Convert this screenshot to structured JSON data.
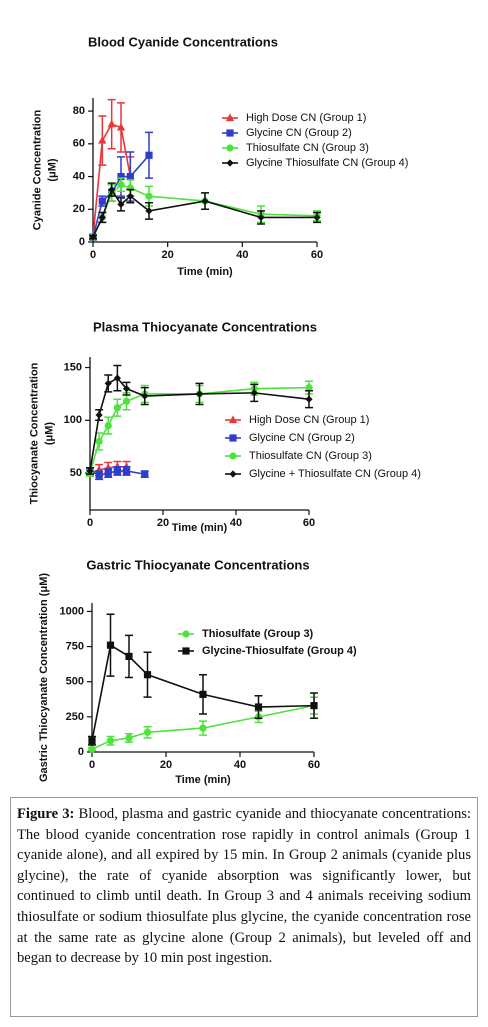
{
  "chart_data": [
    {
      "type": "line",
      "title": "Blood Cyanide Concentrations",
      "xlabel": "Time (min)",
      "ylabel": [
        "Cyanide Concentration",
        "(μM)"
      ],
      "xlim": [
        0,
        60
      ],
      "xticks": [
        0,
        20,
        40,
        60
      ],
      "ylim": [
        0,
        88
      ],
      "yticks": [
        0,
        20,
        40,
        60,
        80
      ],
      "grid": false,
      "series": [
        {
          "name": "High Dose CN (Group 1)",
          "color": "#e8373a",
          "marker": "triangle",
          "x": [
            0,
            2.5,
            5,
            7.5,
            10
          ],
          "values": [
            3,
            62,
            72,
            70,
            40
          ],
          "errors": [
            1,
            15,
            15,
            15,
            12
          ]
        },
        {
          "name": "Glycine CN (Group 2)",
          "color": "#2f3ec9",
          "marker": "square",
          "x": [
            0,
            2.5,
            5,
            7.5,
            10,
            15
          ],
          "values": [
            3,
            25,
            30,
            40,
            40,
            53
          ],
          "errors": [
            1,
            3,
            5,
            12,
            15,
            14
          ]
        },
        {
          "name": "Thiosulfate CN (Group 3)",
          "color": "#4de33c",
          "marker": "circle",
          "x": [
            0,
            2.5,
            5,
            7.5,
            10,
            15,
            30,
            45,
            60
          ],
          "values": [
            3,
            15,
            30,
            35,
            33,
            28,
            25,
            17,
            16
          ],
          "errors": [
            1,
            3,
            5,
            4,
            5,
            6,
            5,
            5,
            3
          ]
        },
        {
          "name": "Glycine Thiosulfate CN (Group 4)",
          "color": "#111111",
          "marker": "diamond",
          "x": [
            0,
            2.5,
            5,
            7.5,
            10,
            15,
            30,
            45,
            60
          ],
          "values": [
            3,
            15,
            32,
            23,
            28,
            19,
            25,
            15,
            15
          ],
          "errors": [
            1,
            3,
            4,
            4,
            4,
            5,
            5,
            4,
            3
          ]
        }
      ]
    },
    {
      "type": "line",
      "title": "Plasma Thiocyanate Concentrations",
      "xlabel": "Time (min)",
      "ylabel": [
        "Thiocyanate Concentration",
        "(μM)"
      ],
      "xlim": [
        0,
        60
      ],
      "xticks": [
        0,
        20,
        40,
        60
      ],
      "ylim": [
        15,
        160
      ],
      "yticks": [
        50,
        100,
        150
      ],
      "grid": false,
      "series": [
        {
          "name": "High Dose CN (Group 1)",
          "color": "#e8373a",
          "marker": "triangle",
          "x": [
            0,
            2.5,
            5,
            7.5,
            10
          ],
          "values": [
            50,
            53,
            55,
            56,
            56
          ],
          "errors": [
            3,
            5,
            5,
            5,
            5
          ]
        },
        {
          "name": "Glycine CN (Group 2)",
          "color": "#2f3ec9",
          "marker": "square",
          "x": [
            0,
            2.5,
            5,
            7.5,
            10,
            15
          ],
          "values": [
            52,
            48,
            50,
            52,
            52,
            49
          ],
          "errors": [
            3,
            4,
            4,
            4,
            4,
            3
          ]
        },
        {
          "name": "Thiosulfate CN (Group 3)",
          "color": "#4de33c",
          "marker": "circle",
          "x": [
            0,
            2.5,
            5,
            7.5,
            10,
            15,
            30,
            45,
            60
          ],
          "values": [
            50,
            80,
            95,
            112,
            118,
            125,
            125,
            130,
            131
          ],
          "errors": [
            3,
            8,
            8,
            8,
            8,
            8,
            8,
            6,
            6
          ]
        },
        {
          "name": "Glycine + Thiosulfate CN (Group 4)",
          "color": "#111111",
          "marker": "diamond",
          "x": [
            0,
            2.5,
            5,
            7.5,
            10,
            15,
            30,
            45,
            60
          ],
          "values": [
            52,
            105,
            135,
            140,
            130,
            123,
            125,
            126,
            120
          ],
          "errors": [
            3,
            5,
            8,
            12,
            6,
            8,
            10,
            8,
            8
          ]
        }
      ]
    },
    {
      "type": "line",
      "title": "Gastric Thiocyanate Concentrations",
      "xlabel": "Time (min)",
      "ylabel": [
        "Gastric Thiocyanate Concentration (μM)"
      ],
      "xlim": [
        0,
        60
      ],
      "xticks": [
        0,
        20,
        40,
        60
      ],
      "ylim": [
        0,
        1060
      ],
      "yticks": [
        0,
        250,
        500,
        750,
        1000
      ],
      "grid": false,
      "series": [
        {
          "name": "Thiosulfate (Group 3)",
          "color": "#4de33c",
          "marker": "circle",
          "x": [
            0,
            5,
            10,
            15,
            30,
            45,
            60
          ],
          "values": [
            20,
            80,
            100,
            140,
            170,
            250,
            330
          ],
          "errors": [
            10,
            30,
            30,
            40,
            50,
            40,
            60
          ]
        },
        {
          "name": "Glycine-Thiosulfate (Group 4)",
          "color": "#111111",
          "marker": "square",
          "x": [
            0,
            5,
            10,
            15,
            30,
            45,
            60
          ],
          "values": [
            80,
            760,
            680,
            550,
            410,
            320,
            330
          ],
          "errors": [
            30,
            220,
            150,
            160,
            140,
            80,
            90
          ]
        }
      ]
    }
  ],
  "caption": {
    "label": "Figure 3:",
    "text": "Blood, plasma and gastric cyanide and thiocyanate concentrations: The blood cyanide concentration rose rapidly in control animals (Group 1 cyanide alone), and all expired by 15 min. In Group 2 animals (cyanide plus glycine), the rate of cyanide absorption was significantly lower, but continued to climb until death. In Group 3 and 4 animals receiving sodium thiosulfate or sodium thiosulfate plus glycine, the cyanide concentration rose at the same rate as glycine alone (Group 2 animals), but leveled off and began to decrease by 10 min post ingestion."
  }
}
